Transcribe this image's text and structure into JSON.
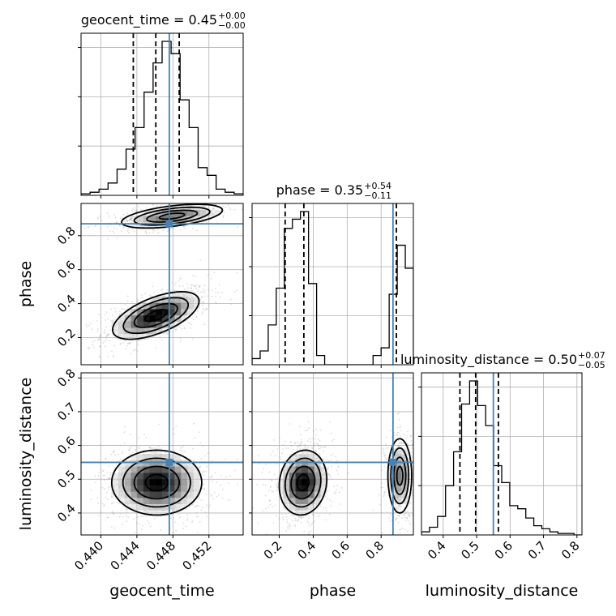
{
  "chart_data": {
    "type": "corner",
    "parameters": [
      "geocent_time",
      "phase",
      "luminosity_distance"
    ],
    "truths": {
      "geocent_time": 0.4476,
      "phase": 0.87,
      "luminosity_distance": 0.55
    },
    "colors": {
      "truth": "#4682b4",
      "hist": "#000000",
      "grid": "#b0b0b0"
    },
    "panels": [
      {
        "id": "hist-geocent_time",
        "kind": "hist",
        "param": "geocent_time",
        "title": {
          "main": "geocent_time = 0.45",
          "sup": "+0.00",
          "sub": "−0.00"
        },
        "xlim": [
          0.4378,
          0.4558
        ],
        "quantiles": [
          0.4436,
          0.4461,
          0.4487
        ],
        "bin_edges": [
          0.4378,
          0.4388,
          0.4398,
          0.4408,
          0.4418,
          0.4428,
          0.4438,
          0.4448,
          0.4458,
          0.4468,
          0.4478,
          0.4488,
          0.4498,
          0.4508,
          0.4518,
          0.4528,
          0.4538,
          0.4548,
          0.4558
        ],
        "counts": [
          0.01,
          0.02,
          0.04,
          0.08,
          0.17,
          0.3,
          0.44,
          0.67,
          0.86,
          1.0,
          0.92,
          0.62,
          0.44,
          0.18,
          0.13,
          0.04,
          0.02,
          0.01
        ],
        "xticks": [
          0.44,
          0.444,
          0.448,
          0.452
        ],
        "xtick_labels": [
          "0.440",
          "0.444",
          "0.448",
          "0.452"
        ]
      },
      {
        "id": "hist-phase",
        "kind": "hist",
        "param": "phase",
        "title": {
          "main": "phase = 0.35",
          "sup": "+0.54",
          "sub": "−0.11"
        },
        "xlim": [
          0.04,
          0.99
        ],
        "quantiles": [
          0.235,
          0.345,
          0.89
        ],
        "bin_edges": [
          0.04,
          0.0875,
          0.135,
          0.1825,
          0.23,
          0.2775,
          0.325,
          0.3725,
          0.42,
          0.4675,
          0.515,
          0.5625,
          0.61,
          0.6575,
          0.705,
          0.7525,
          0.8,
          0.8475,
          0.895,
          0.9425,
          0.99
        ],
        "counts": [
          0.04,
          0.09,
          0.26,
          0.5,
          0.89,
          0.95,
          1.0,
          0.53,
          0.06,
          0.0,
          0.0,
          0.0,
          0.0,
          0.0,
          0.0,
          0.06,
          0.11,
          0.46,
          0.78,
          0.63
        ],
        "xticks": [
          0.2,
          0.4,
          0.6,
          0.8
        ],
        "xtick_labels": [
          "0.2",
          "0.4",
          "0.6",
          "0.8"
        ]
      },
      {
        "id": "hist-luminosity_distance",
        "kind": "hist",
        "param": "luminosity_distance",
        "title": {
          "main": "luminosity_distance = 0.50",
          "sup": "+0.07",
          "sub": "−0.05"
        },
        "xlim": [
          0.335,
          0.815
        ],
        "quantiles": [
          0.45,
          0.497,
          0.565
        ],
        "bin_edges": [
          0.335,
          0.359,
          0.383,
          0.407,
          0.431,
          0.455,
          0.479,
          0.503,
          0.527,
          0.551,
          0.575,
          0.599,
          0.623,
          0.647,
          0.671,
          0.695,
          0.719,
          0.743,
          0.767,
          0.791,
          0.815
        ],
        "counts": [
          0.02,
          0.05,
          0.12,
          0.32,
          0.54,
          0.85,
          1.0,
          0.84,
          0.71,
          0.45,
          0.34,
          0.19,
          0.17,
          0.11,
          0.06,
          0.04,
          0.02,
          0.01,
          0.01,
          0.0
        ],
        "xticks": [
          0.4,
          0.5,
          0.6,
          0.7,
          0.8
        ],
        "xtick_labels": [
          "0.4",
          "0.5",
          "0.6",
          "0.7",
          "0.8"
        ]
      },
      {
        "id": "2d-geocent-phase",
        "kind": "2d",
        "x": "geocent_time",
        "y": "phase",
        "xlim": [
          0.4378,
          0.4558
        ],
        "ylim": [
          0.04,
          0.99
        ],
        "xticks": [
          0.44,
          0.444,
          0.448,
          0.452
        ],
        "yticks": [
          0.2,
          0.4,
          0.6,
          0.8
        ],
        "ytick_labels": [
          "0.2",
          "0.4",
          "0.6",
          "0.8"
        ],
        "modes": [
          {
            "cx": 0.4461,
            "cy": 0.33,
            "sx": 0.0024,
            "sy": 0.07,
            "rho": 0.6,
            "weight": 1.0
          },
          {
            "cx": 0.4479,
            "cy": 0.915,
            "sx": 0.0028,
            "sy": 0.035,
            "rho": 0.5,
            "weight": 0.65
          }
        ]
      },
      {
        "id": "2d-geocent-luminosity",
        "kind": "2d",
        "x": "geocent_time",
        "y": "luminosity_distance",
        "xlim": [
          0.4378,
          0.4558
        ],
        "ylim": [
          0.335,
          0.815
        ],
        "xticks": [
          0.44,
          0.444,
          0.448,
          0.452
        ],
        "yticks": [
          0.4,
          0.5,
          0.6,
          0.7,
          0.8
        ],
        "ytick_labels": [
          "0.4",
          "0.5",
          "0.6",
          "0.7",
          "0.8"
        ],
        "modes": [
          {
            "cx": 0.4462,
            "cy": 0.49,
            "sx": 0.0025,
            "sy": 0.048,
            "rho": 0.0,
            "weight": 1.0
          }
        ]
      },
      {
        "id": "2d-phase-luminosity",
        "kind": "2d",
        "x": "phase",
        "y": "luminosity_distance",
        "xlim": [
          0.04,
          0.99
        ],
        "ylim": [
          0.335,
          0.815
        ],
        "xticks": [
          0.2,
          0.4,
          0.6,
          0.8
        ],
        "yticks": [
          0.4,
          0.5,
          0.6,
          0.7,
          0.8
        ],
        "modes": [
          {
            "cx": 0.34,
            "cy": 0.49,
            "sx": 0.07,
            "sy": 0.048,
            "rho": 0.1,
            "weight": 1.0
          },
          {
            "cx": 0.91,
            "cy": 0.51,
            "sx": 0.035,
            "sy": 0.055,
            "rho": 0.0,
            "weight": 0.6
          }
        ]
      }
    ],
    "axis_labels": {
      "x": [
        "geocent_time",
        "phase",
        "luminosity_distance"
      ],
      "y": [
        "phase",
        "luminosity_distance"
      ]
    }
  }
}
